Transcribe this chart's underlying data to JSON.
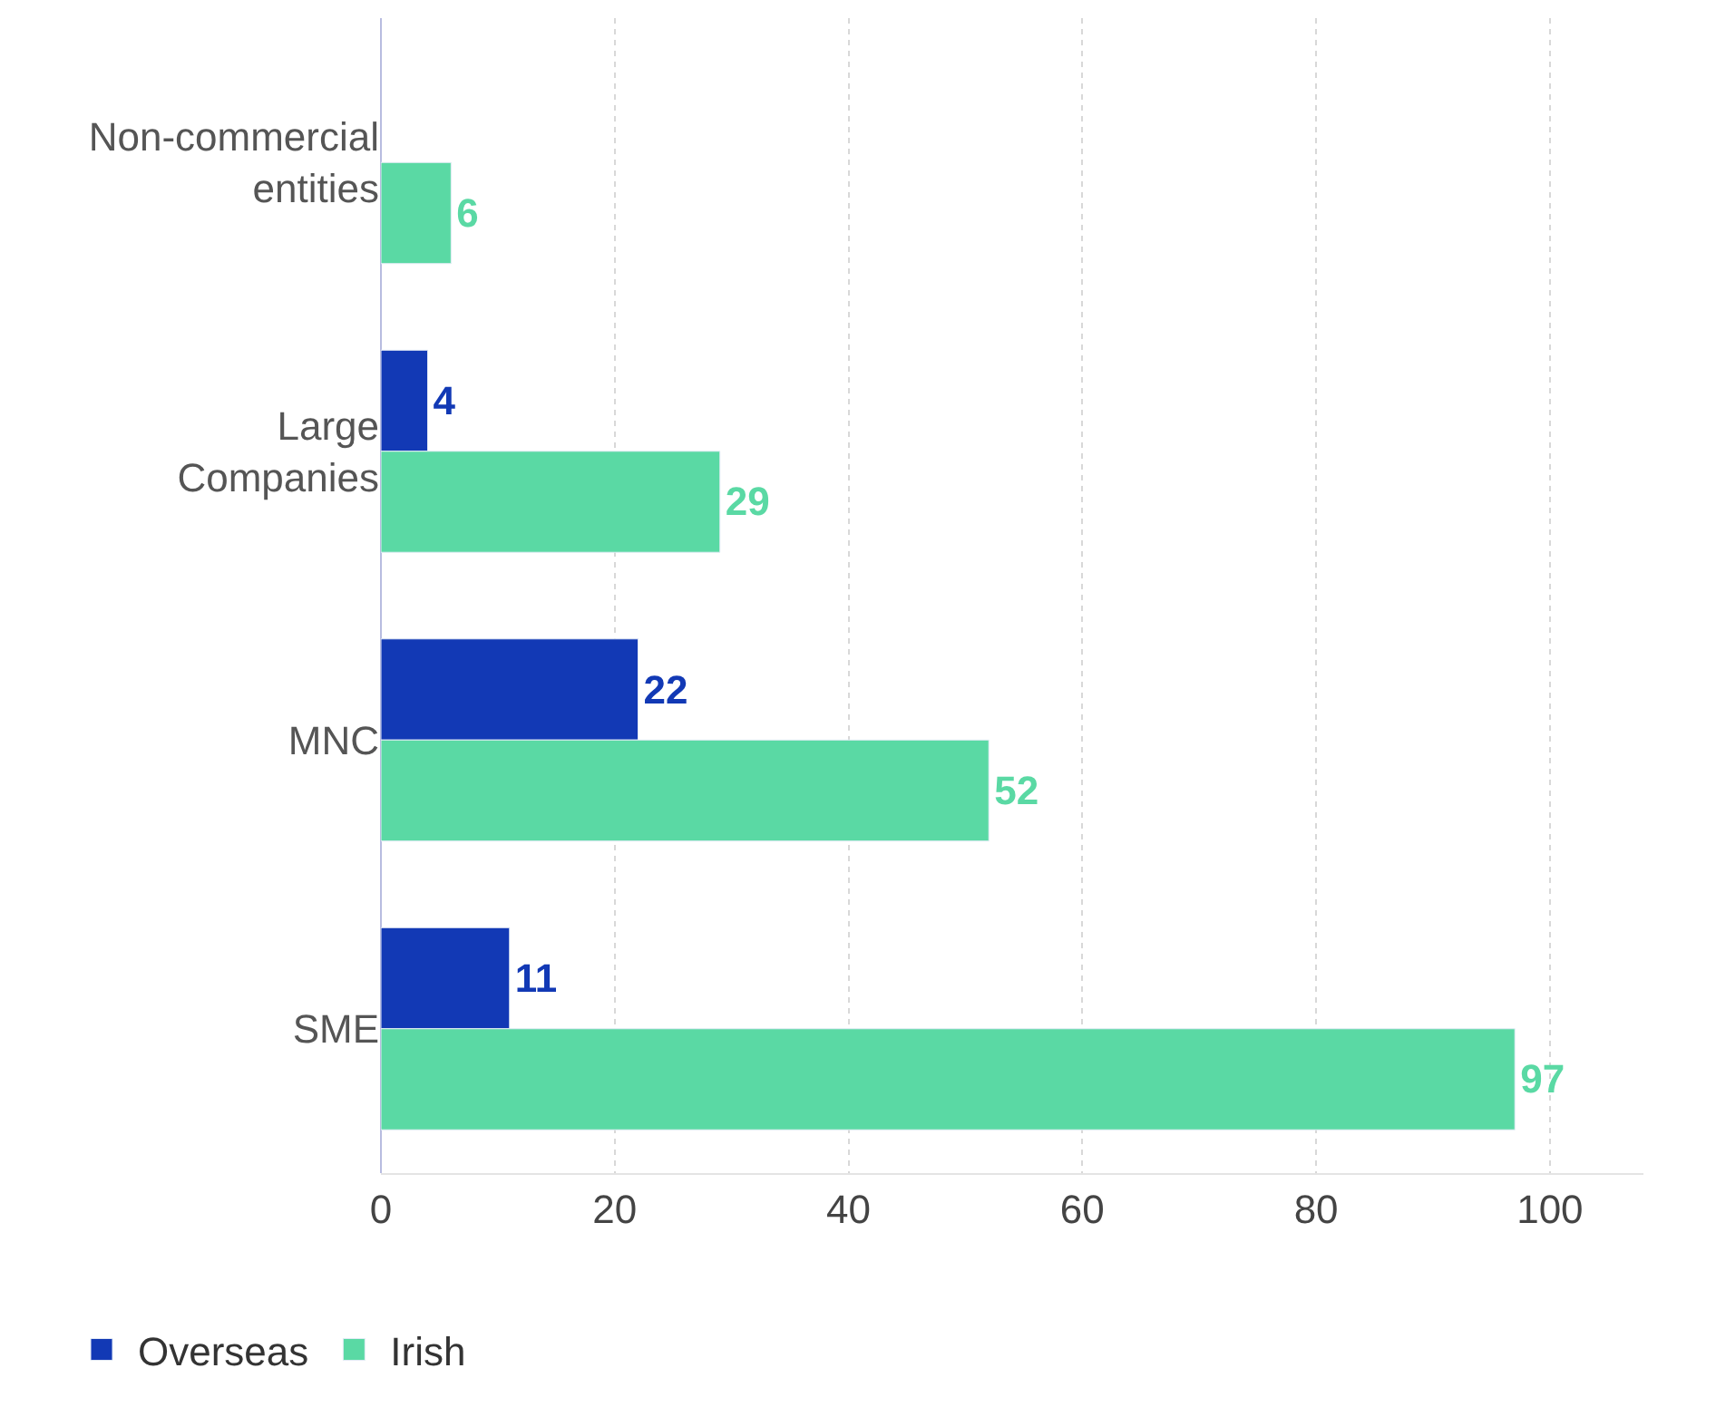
{
  "chart_data": {
    "type": "bar",
    "orientation": "horizontal",
    "categories": [
      "Non-commercial entities",
      "Large Companies",
      "MNC",
      "SME"
    ],
    "series": [
      {
        "name": "Overseas",
        "color": "#1239b5",
        "values": [
          null,
          4,
          22,
          11
        ]
      },
      {
        "name": "Irish",
        "color": "#5ad9a4",
        "values": [
          6,
          29,
          52,
          97
        ]
      }
    ],
    "xlim": [
      0,
      108
    ],
    "xticks": [
      0,
      20,
      40,
      60,
      80,
      100
    ],
    "grid": "x",
    "legend": "bottom left",
    "data_labels": true
  }
}
